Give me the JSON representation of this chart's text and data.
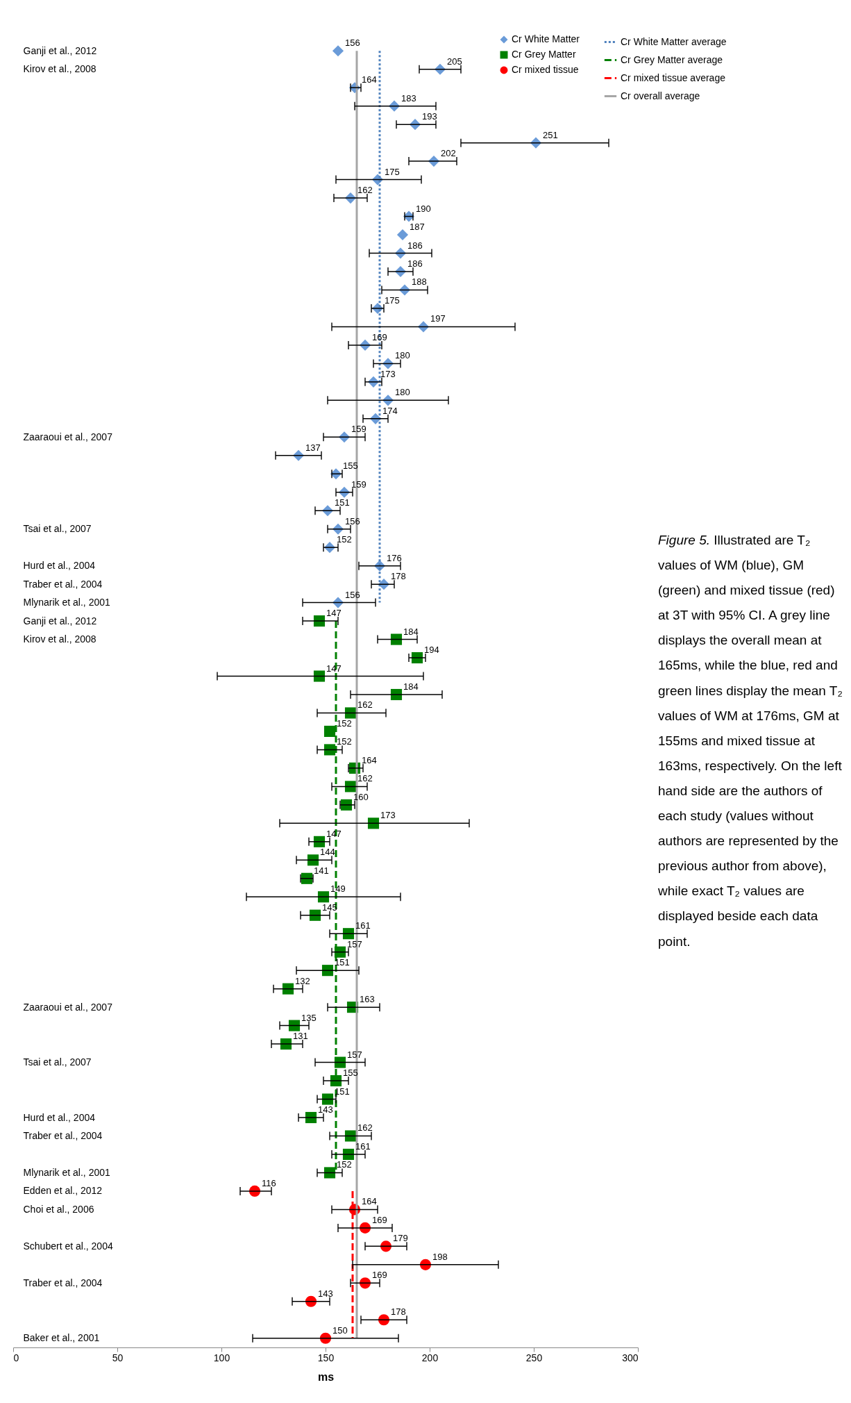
{
  "chart_data": {
    "type": "scatter",
    "orientation": "horizontal",
    "xlabel": "ms",
    "xlim": [
      0,
      300
    ],
    "xticks": [
      0,
      50,
      100,
      150,
      200,
      250,
      300
    ],
    "legend": "top right",
    "annotations": [
      "Figure 5.",
      "Illustrated are T₂ values of WM (blue), GM (green) and mixed tissue (red) at 3T with 95% CI. A grey line displays the overall mean at 165ms, while the blue, red and green lines display the mean T₂ values of WM at 176ms, GM at 155ms and mixed tissue at 163ms, respectively. On the left hand side are the authors of each study (values without authors are represented by the previous author from above), while exact T₂ values are displayed beside each data point."
    ],
    "categories": [
      "Ganji et al., 2012",
      "Kirov et al., 2008",
      null,
      null,
      null,
      null,
      null,
      null,
      null,
      null,
      null,
      null,
      null,
      null,
      null,
      null,
      null,
      null,
      null,
      null,
      null,
      "Zaaraoui et al., 2007",
      null,
      null,
      null,
      null,
      "Tsai et al., 2007",
      null,
      "Hurd et al., 2004",
      "Traber et al., 2004",
      "Mlynarik et al., 2001",
      "Ganji et al., 2012",
      "Kirov et al., 2008",
      null,
      null,
      null,
      null,
      null,
      null,
      null,
      null,
      null,
      null,
      null,
      null,
      null,
      null,
      null,
      null,
      null,
      null,
      null,
      "Zaaraoui et al., 2007",
      null,
      null,
      "Tsai et al., 2007",
      null,
      null,
      "Hurd et al., 2004",
      "Traber et al., 2004",
      null,
      "Mlynarik et al., 2001",
      "Edden et al., 2012",
      "Choi et al., 2006",
      null,
      "Schubert et al., 2004",
      null,
      "Traber et al., 2004",
      null,
      null,
      "Baker et al., 2001"
    ],
    "series": [
      {
        "name": "Cr White Matter",
        "type": "scatter",
        "marker": "diamond",
        "color": "#6a9bd8",
        "values": [
          156,
          205,
          164,
          183,
          193,
          251,
          202,
          175,
          162,
          190,
          187,
          186,
          186,
          188,
          175,
          197,
          169,
          180,
          173,
          180,
          174,
          159,
          137,
          155,
          159,
          151,
          156,
          152,
          176,
          178,
          156,
          null,
          null,
          null,
          null,
          null,
          null,
          null,
          null,
          null,
          null,
          null,
          null,
          null,
          null,
          null,
          null,
          null,
          null,
          null,
          null,
          null,
          null,
          null,
          null,
          null,
          null,
          null,
          null,
          null,
          null,
          null,
          null,
          null,
          null,
          null,
          null,
          null,
          null,
          null,
          null
        ],
        "value_labels": [
          "156",
          "205",
          "164",
          "183",
          "193",
          "251",
          "202",
          "175",
          "162",
          "190",
          "187",
          "186",
          "186",
          "188",
          "175",
          "197",
          "169",
          "180",
          "173",
          "180",
          "174",
          "159",
          "137",
          "155",
          "159",
          "151",
          "156",
          "152",
          "176",
          "178",
          "156",
          null,
          null,
          null,
          null,
          null,
          null,
          null,
          null,
          null,
          null,
          null,
          null,
          null,
          null,
          null,
          null,
          null,
          null,
          null,
          null,
          null,
          null,
          null,
          null,
          null,
          null,
          null,
          null,
          null,
          null,
          null,
          null,
          null,
          null,
          null,
          null,
          null,
          null,
          null,
          null
        ],
        "errors": [
          null,
          [
            195,
            215
          ],
          [
            162,
            167
          ],
          [
            164,
            203
          ],
          [
            184,
            203
          ],
          [
            215,
            286
          ],
          [
            190,
            213
          ],
          [
            155,
            196
          ],
          [
            154,
            170
          ],
          [
            188,
            192
          ],
          null,
          [
            171,
            201
          ],
          [
            180,
            192
          ],
          [
            177,
            199
          ],
          [
            172,
            178
          ],
          [
            153,
            241
          ],
          [
            161,
            177
          ],
          [
            173,
            186
          ],
          [
            169,
            177
          ],
          [
            151,
            209
          ],
          [
            168,
            180
          ],
          [
            149,
            169
          ],
          [
            126,
            148
          ],
          [
            153,
            158
          ],
          [
            155,
            163
          ],
          [
            145,
            157
          ],
          [
            151,
            162
          ],
          [
            149,
            156
          ],
          [
            166,
            186
          ],
          [
            172,
            183
          ],
          [
            139,
            174
          ],
          null,
          null,
          null,
          null,
          null,
          null,
          null,
          null,
          null,
          null,
          null,
          null,
          null,
          null,
          null,
          null,
          null,
          null,
          null,
          null,
          null,
          null,
          null,
          null,
          null,
          null,
          null,
          null,
          null,
          null,
          null,
          null,
          null,
          null,
          null,
          null,
          null,
          null,
          null,
          null
        ]
      },
      {
        "name": "Cr Grey Matter",
        "type": "scatter",
        "marker": "square",
        "color": "#008000",
        "values": [
          null,
          null,
          null,
          null,
          null,
          null,
          null,
          null,
          null,
          null,
          null,
          null,
          null,
          null,
          null,
          null,
          null,
          null,
          null,
          null,
          null,
          null,
          null,
          null,
          null,
          null,
          null,
          null,
          null,
          null,
          null,
          147,
          184,
          194,
          147,
          184,
          162,
          152,
          152,
          164,
          162,
          160,
          173,
          147,
          144,
          141,
          149,
          145,
          161,
          157,
          151,
          132,
          163,
          135,
          131,
          157,
          155,
          151,
          143,
          162,
          161,
          152,
          null,
          null,
          null,
          null,
          null,
          null,
          null,
          null,
          null
        ],
        "value_labels": [
          null,
          null,
          null,
          null,
          null,
          null,
          null,
          null,
          null,
          null,
          null,
          null,
          null,
          null,
          null,
          null,
          null,
          null,
          null,
          null,
          null,
          null,
          null,
          null,
          null,
          null,
          null,
          null,
          null,
          null,
          null,
          "147",
          "184",
          "194",
          "147",
          "184",
          "162",
          "152",
          "152",
          "164",
          "162",
          "160",
          "173",
          "147",
          "144",
          "141",
          "149",
          "145",
          "161",
          "157",
          "151",
          "132",
          "163",
          "135",
          "131",
          "157",
          "155",
          "151",
          "143",
          "162",
          "161",
          "152",
          null,
          null,
          null,
          null,
          null,
          null,
          null,
          null,
          null
        ],
        "errors": [
          null,
          null,
          null,
          null,
          null,
          null,
          null,
          null,
          null,
          null,
          null,
          null,
          null,
          null,
          null,
          null,
          null,
          null,
          null,
          null,
          null,
          null,
          null,
          null,
          null,
          null,
          null,
          null,
          null,
          null,
          null,
          [
            139,
            156
          ],
          [
            175,
            194
          ],
          [
            190,
            198
          ],
          [
            98,
            197
          ],
          [
            162,
            206
          ],
          [
            146,
            179
          ],
          null,
          [
            146,
            158
          ],
          [
            161,
            168
          ],
          [
            153,
            170
          ],
          [
            157,
            164
          ],
          [
            128,
            219
          ],
          [
            142,
            152
          ],
          [
            136,
            153
          ],
          [
            138,
            144
          ],
          [
            112,
            186
          ],
          [
            138,
            152
          ],
          [
            152,
            170
          ],
          [
            153,
            161
          ],
          [
            136,
            166
          ],
          [
            125,
            139
          ],
          [
            151,
            176
          ],
          [
            128,
            142
          ],
          [
            124,
            139
          ],
          [
            145,
            169
          ],
          [
            149,
            161
          ],
          [
            146,
            155
          ],
          [
            137,
            149
          ],
          [
            152,
            172
          ],
          [
            153,
            169
          ],
          [
            146,
            158
          ],
          null,
          null,
          null,
          null,
          null,
          null,
          null,
          null,
          null
        ]
      },
      {
        "name": "Cr mixed tissue",
        "type": "scatter",
        "marker": "circle",
        "color": "#ff0000",
        "values": [
          null,
          null,
          null,
          null,
          null,
          null,
          null,
          null,
          null,
          null,
          null,
          null,
          null,
          null,
          null,
          null,
          null,
          null,
          null,
          null,
          null,
          null,
          null,
          null,
          null,
          null,
          null,
          null,
          null,
          null,
          null,
          null,
          null,
          null,
          null,
          null,
          null,
          null,
          null,
          null,
          null,
          null,
          null,
          null,
          null,
          null,
          null,
          null,
          null,
          null,
          null,
          null,
          null,
          null,
          null,
          null,
          null,
          null,
          null,
          null,
          null,
          null,
          116,
          164,
          169,
          179,
          198,
          169,
          143,
          178,
          150
        ],
        "value_labels": [
          null,
          null,
          null,
          null,
          null,
          null,
          null,
          null,
          null,
          null,
          null,
          null,
          null,
          null,
          null,
          null,
          null,
          null,
          null,
          null,
          null,
          null,
          null,
          null,
          null,
          null,
          null,
          null,
          null,
          null,
          null,
          null,
          null,
          null,
          null,
          null,
          null,
          null,
          null,
          null,
          null,
          null,
          null,
          null,
          null,
          null,
          null,
          null,
          null,
          null,
          null,
          null,
          null,
          null,
          null,
          null,
          null,
          null,
          null,
          null,
          null,
          null,
          "116",
          "164",
          "169",
          "179",
          "198",
          "169",
          "143",
          "178",
          "150"
        ],
        "errors": [
          null,
          null,
          null,
          null,
          null,
          null,
          null,
          null,
          null,
          null,
          null,
          null,
          null,
          null,
          null,
          null,
          null,
          null,
          null,
          null,
          null,
          null,
          null,
          null,
          null,
          null,
          null,
          null,
          null,
          null,
          null,
          null,
          null,
          null,
          null,
          null,
          null,
          null,
          null,
          null,
          null,
          null,
          null,
          null,
          null,
          null,
          null,
          null,
          null,
          null,
          null,
          null,
          null,
          null,
          null,
          null,
          null,
          null,
          null,
          null,
          null,
          null,
          [
            109,
            124
          ],
          [
            153,
            175
          ],
          [
            156,
            182
          ],
          [
            169,
            189
          ],
          [
            163,
            233
          ],
          [
            162,
            176
          ],
          [
            134,
            152
          ],
          [
            167,
            189
          ],
          [
            115,
            185
          ]
        ]
      },
      {
        "name": "Cr White Matter average",
        "type": "line",
        "line_style": "dotted",
        "color": "#4f81bd",
        "values": [
          176,
          176,
          176,
          176,
          176,
          176,
          176,
          176,
          176,
          176,
          176,
          176,
          176,
          176,
          176,
          176,
          176,
          176,
          176,
          176,
          176,
          176,
          176,
          176,
          176,
          176,
          176,
          176,
          176,
          176,
          176,
          null,
          null,
          null,
          null,
          null,
          null,
          null,
          null,
          null,
          null,
          null,
          null,
          null,
          null,
          null,
          null,
          null,
          null,
          null,
          null,
          null,
          null,
          null,
          null,
          null,
          null,
          null,
          null,
          null,
          null,
          null,
          null,
          null,
          null,
          null,
          null,
          null,
          null,
          null,
          null
        ]
      },
      {
        "name": "Cr Grey Matter average",
        "type": "line",
        "line_style": "dashed",
        "color": "#008000",
        "values": [
          null,
          null,
          null,
          null,
          null,
          null,
          null,
          null,
          null,
          null,
          null,
          null,
          null,
          null,
          null,
          null,
          null,
          null,
          null,
          null,
          null,
          null,
          null,
          null,
          null,
          null,
          null,
          null,
          null,
          null,
          null,
          155,
          155,
          155,
          155,
          155,
          155,
          155,
          155,
          155,
          155,
          155,
          155,
          155,
          155,
          155,
          155,
          155,
          155,
          155,
          155,
          155,
          155,
          155,
          155,
          155,
          155,
          155,
          155,
          155,
          155,
          155,
          null,
          null,
          null,
          null,
          null,
          null,
          null,
          null,
          null
        ]
      },
      {
        "name": "Cr mixed tissue average",
        "type": "line",
        "line_style": "dashed",
        "color": "#ff0000",
        "values": [
          null,
          null,
          null,
          null,
          null,
          null,
          null,
          null,
          null,
          null,
          null,
          null,
          null,
          null,
          null,
          null,
          null,
          null,
          null,
          null,
          null,
          null,
          null,
          null,
          null,
          null,
          null,
          null,
          null,
          null,
          null,
          null,
          null,
          null,
          null,
          null,
          null,
          null,
          null,
          null,
          null,
          null,
          null,
          null,
          null,
          null,
          null,
          null,
          null,
          null,
          null,
          null,
          null,
          null,
          null,
          null,
          null,
          null,
          null,
          null,
          null,
          null,
          163,
          163,
          163,
          163,
          163,
          163,
          163,
          163,
          163
        ]
      },
      {
        "name": "Cr overall average",
        "type": "line",
        "line_style": "solid",
        "color": "#a6a6a6",
        "values": [
          165,
          165,
          165,
          165,
          165,
          165,
          165,
          165,
          165,
          165,
          165,
          165,
          165,
          165,
          165,
          165,
          165,
          165,
          165,
          165,
          165,
          165,
          165,
          165,
          165,
          165,
          165,
          165,
          165,
          165,
          165,
          165,
          165,
          165,
          165,
          165,
          165,
          165,
          165,
          165,
          165,
          165,
          165,
          165,
          165,
          165,
          165,
          165,
          165,
          165,
          165,
          165,
          165,
          165,
          165,
          165,
          165,
          165,
          165,
          165,
          165,
          165,
          165,
          165,
          165,
          165,
          165,
          165,
          165,
          165,
          165
        ]
      }
    ]
  }
}
